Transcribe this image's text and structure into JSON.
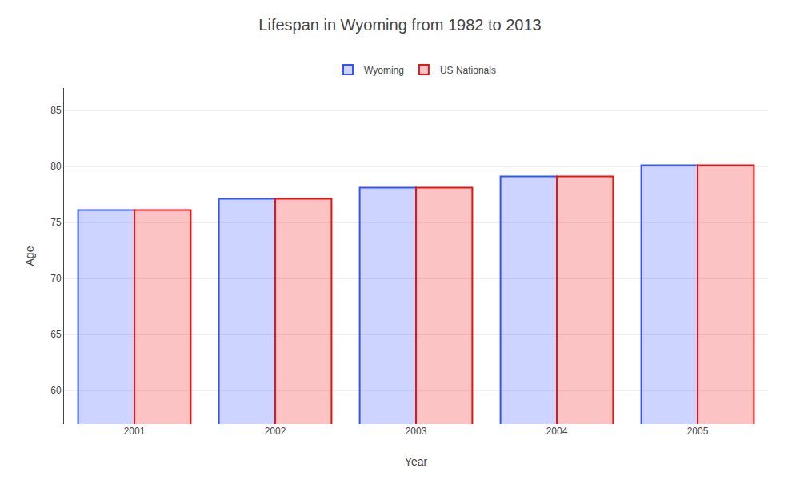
{
  "chart_data": {
    "type": "bar",
    "title": "Lifespan in Wyoming from 1982 to 2013",
    "xlabel": "Year",
    "ylabel": "Age",
    "categories": [
      "2001",
      "2002",
      "2003",
      "2004",
      "2005"
    ],
    "series": [
      {
        "name": "Wyoming",
        "color": "#3355ff",
        "values": [
          76.1,
          77.1,
          78.1,
          79.1,
          80.1
        ]
      },
      {
        "name": "US Nationals",
        "color": "#ee1111",
        "values": [
          76.1,
          77.1,
          78.1,
          79.1,
          80.1
        ]
      }
    ],
    "ylim": [
      57,
      87
    ],
    "yticks": [
      60,
      65,
      70,
      75,
      80,
      85
    ],
    "grid": true,
    "legend": "top"
  }
}
